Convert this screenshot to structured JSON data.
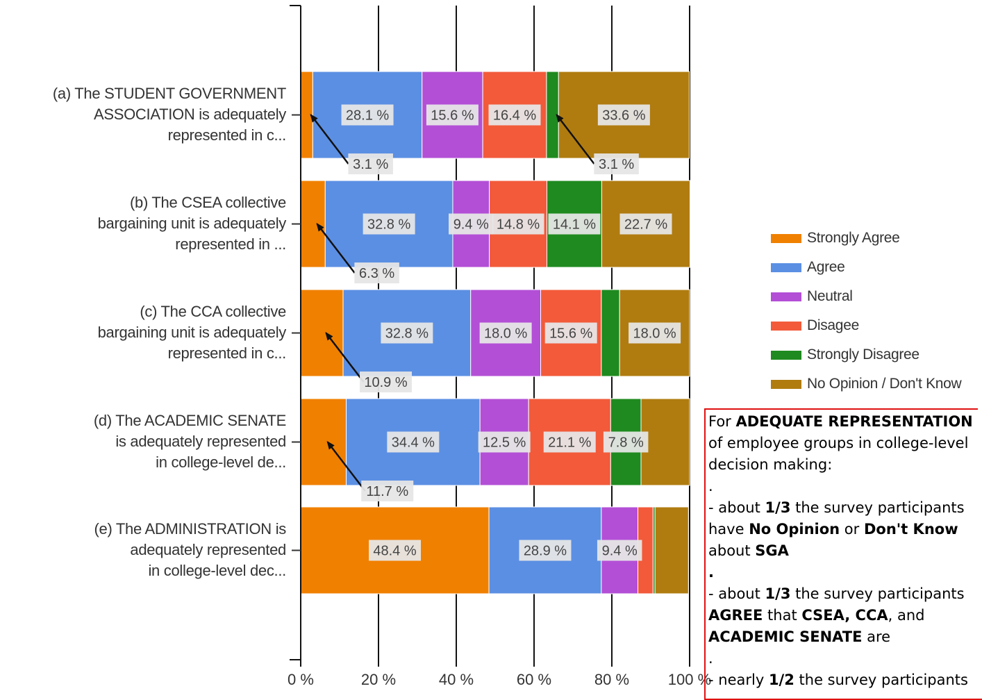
{
  "chart_data": {
    "type": "bar",
    "orientation": "horizontal",
    "stacked": "percent",
    "categories": [
      [
        "(a) The STUDENT GOVERNMENT",
        "ASSOCIATION is adequately",
        "represented in c..."
      ],
      [
        "(b) The CSEA collective",
        "bargaining unit is adequately",
        "represented in ..."
      ],
      [
        "(c) The CCA collective",
        "bargaining unit is adequately",
        "represented in c..."
      ],
      [
        "(d) The ACADEMIC SENATE",
        "is adequately represented",
        "in college-level de..."
      ],
      [
        "(e) The ADMINISTRATION is",
        "adequately represented",
        "in college-level dec..."
      ]
    ],
    "series": [
      {
        "name": "Strongly Agree",
        "color": "#f08000",
        "values": [
          3.1,
          6.3,
          10.9,
          11.7,
          48.4
        ]
      },
      {
        "name": "Agree",
        "color": "#5b8fe3",
        "values": [
          28.1,
          32.8,
          32.8,
          34.4,
          28.9
        ]
      },
      {
        "name": "Neutral",
        "color": "#b34fd6",
        "values": [
          15.6,
          9.4,
          18.0,
          12.5,
          9.4
        ]
      },
      {
        "name": "Disagee",
        "color": "#f25a3a",
        "values": [
          16.4,
          14.8,
          15.6,
          21.1,
          3.9
        ]
      },
      {
        "name": "Strongly Disagree",
        "color": "#1f8a1f",
        "values": [
          3.1,
          14.1,
          4.7,
          7.8,
          0.5
        ]
      },
      {
        "name": "No Opinion / Don't Know",
        "color": "#b07c10",
        "values": [
          33.6,
          22.7,
          18.0,
          12.5,
          8.6
        ]
      }
    ],
    "data_labels": [
      [
        {
          "s": 1,
          "t": "28.1 %"
        },
        {
          "s": 2,
          "t": "15.6 %"
        },
        {
          "s": 3,
          "t": "16.4 %"
        },
        {
          "s": 5,
          "t": "33.6 %"
        }
      ],
      [
        {
          "s": 1,
          "t": "32.8 %"
        },
        {
          "s": 2,
          "t": "9.4 %"
        },
        {
          "s": 3,
          "t": "14.8 %"
        },
        {
          "s": 4,
          "t": "14.1 %"
        },
        {
          "s": 5,
          "t": "22.7 %"
        }
      ],
      [
        {
          "s": 1,
          "t": "32.8 %"
        },
        {
          "s": 2,
          "t": "18.0 %"
        },
        {
          "s": 3,
          "t": "15.6 %"
        },
        {
          "s": 5,
          "t": "18.0 %"
        }
      ],
      [
        {
          "s": 1,
          "t": "34.4 %"
        },
        {
          "s": 2,
          "t": "12.5 %"
        },
        {
          "s": 3,
          "t": "21.1 %"
        },
        {
          "s": 4,
          "t": "7.8 %"
        }
      ],
      [
        {
          "s": 0,
          "t": "48.4 %"
        },
        {
          "s": 1,
          "t": "28.9 %"
        },
        {
          "s": 2,
          "t": "9.4 %"
        }
      ]
    ],
    "callouts": [
      {
        "row": 0,
        "s": 0,
        "t": "3.1 %"
      },
      {
        "row": 0,
        "s": 4,
        "t": "3.1 %"
      },
      {
        "row": 1,
        "s": 0,
        "t": "6.3 %"
      },
      {
        "row": 2,
        "s": 0,
        "t": "10.9 %"
      },
      {
        "row": 3,
        "s": 0,
        "t": "11.7 %"
      }
    ],
    "x_ticks": [
      "0 %",
      "20 %",
      "40 %",
      "60 %",
      "80 %",
      "100 %"
    ],
    "xlim": [
      0,
      100
    ],
    "grid": true,
    "legend_position": "right"
  },
  "note": {
    "lines": [
      [
        {
          "t": "For "
        },
        {
          "t": "ADEQUATE REPRESENTATION",
          "b": true
        }
      ],
      [
        {
          "t": "of employee groups in college-level"
        }
      ],
      [
        {
          "t": "decision making:"
        }
      ],
      [
        {
          "t": "."
        }
      ],
      [
        {
          "t": "- about  "
        },
        {
          "t": "1/3",
          "b": true
        },
        {
          "t": " the survey participants"
        }
      ],
      [
        {
          "t": "have "
        },
        {
          "t": "No Opinion",
          "b": true
        },
        {
          "t": " or "
        },
        {
          "t": "Don't Know",
          "b": true
        }
      ],
      [
        {
          "t": "about "
        },
        {
          "t": "SGA",
          "b": true
        }
      ],
      [
        {
          "t": ".",
          "b": true
        }
      ],
      [
        {
          "t": "- about "
        },
        {
          "t": "1/3",
          "b": true
        },
        {
          "t": "  the survey participants"
        }
      ],
      [
        {
          "t": "AGREE",
          "b": true
        },
        {
          "t": " that "
        },
        {
          "t": "CSEA, CCA",
          "b": true
        },
        {
          "t": ", and"
        }
      ],
      [
        {
          "t": "ACADEMIC SENATE",
          "b": true
        },
        {
          "t": " are"
        }
      ],
      [
        {
          "t": "."
        }
      ],
      [
        {
          "t": "- nearly "
        },
        {
          "t": "1/2",
          "b": true
        },
        {
          "t": " the survey participants"
        }
      ]
    ]
  }
}
